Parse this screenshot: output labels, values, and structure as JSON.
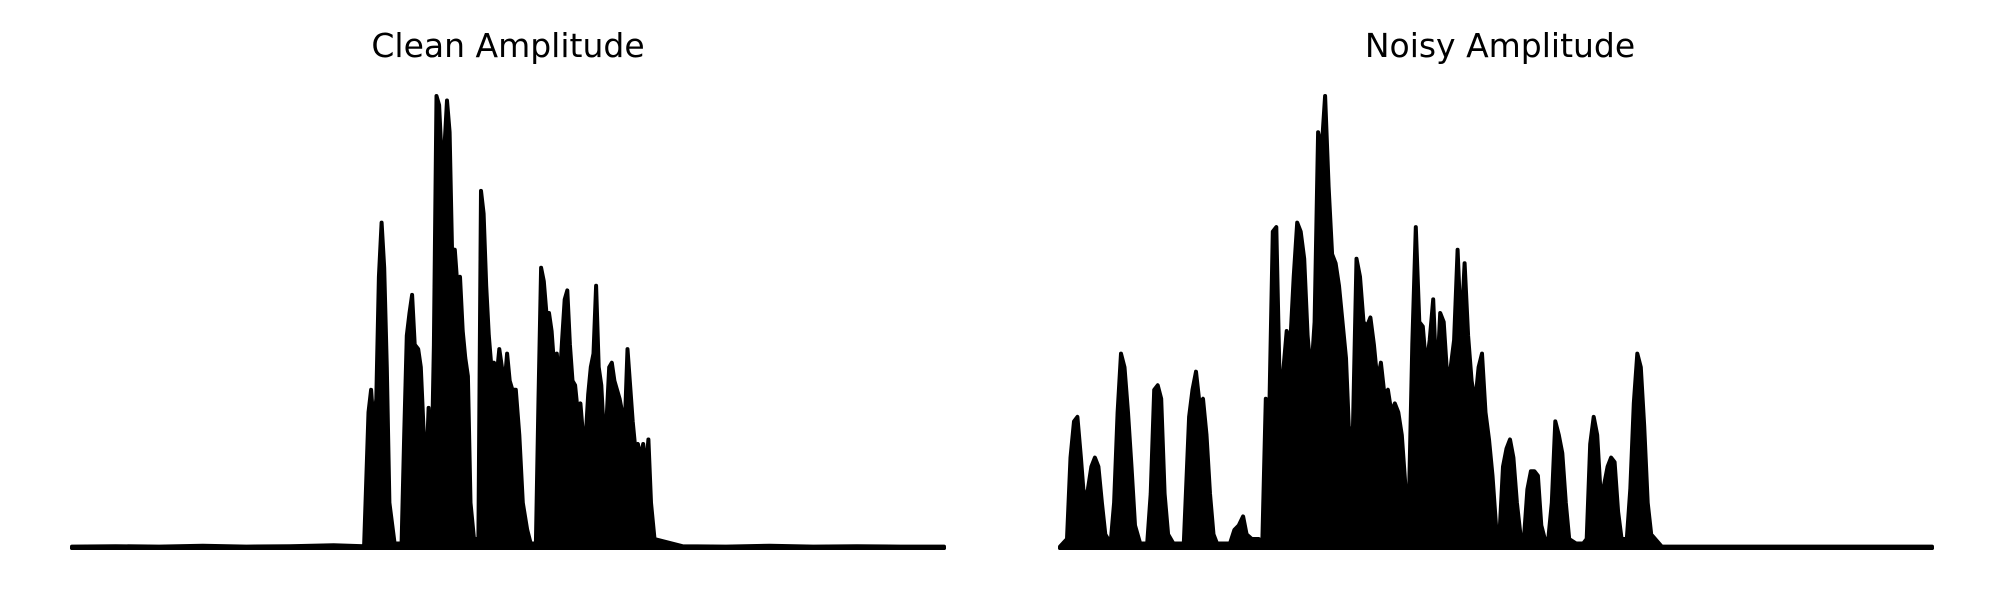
{
  "chart_data": [
    {
      "type": "area",
      "title": "Clean Amplitude",
      "xlabel": "",
      "ylabel": "",
      "axes": "off",
      "grid": false,
      "color": "#000000",
      "x_range": [
        0,
        1
      ],
      "ylim": [
        0,
        1
      ],
      "envelope": [
        [
          0.0,
          0.003
        ],
        [
          0.05,
          0.004
        ],
        [
          0.1,
          0.003
        ],
        [
          0.15,
          0.005
        ],
        [
          0.2,
          0.003
        ],
        [
          0.25,
          0.004
        ],
        [
          0.3,
          0.006
        ],
        [
          0.335,
          0.004
        ],
        [
          0.34,
          0.3
        ],
        [
          0.343,
          0.35
        ],
        [
          0.346,
          0.27
        ],
        [
          0.349,
          0.33
        ],
        [
          0.352,
          0.6
        ],
        [
          0.355,
          0.72
        ],
        [
          0.358,
          0.62
        ],
        [
          0.361,
          0.4
        ],
        [
          0.364,
          0.1
        ],
        [
          0.37,
          0.01
        ],
        [
          0.378,
          0.01
        ],
        [
          0.381,
          0.25
        ],
        [
          0.384,
          0.47
        ],
        [
          0.387,
          0.52
        ],
        [
          0.39,
          0.56
        ],
        [
          0.393,
          0.45
        ],
        [
          0.397,
          0.44
        ],
        [
          0.4,
          0.4
        ],
        [
          0.403,
          0.27
        ],
        [
          0.406,
          0.15
        ],
        [
          0.409,
          0.31
        ],
        [
          0.412,
          0.14
        ],
        [
          0.415,
          0.45
        ],
        [
          0.418,
          1.0
        ],
        [
          0.421,
          0.98
        ],
        [
          0.424,
          0.86
        ],
        [
          0.427,
          0.88
        ],
        [
          0.43,
          0.99
        ],
        [
          0.433,
          0.92
        ],
        [
          0.436,
          0.64
        ],
        [
          0.439,
          0.66
        ],
        [
          0.442,
          0.58
        ],
        [
          0.445,
          0.6
        ],
        [
          0.448,
          0.48
        ],
        [
          0.451,
          0.42
        ],
        [
          0.454,
          0.38
        ],
        [
          0.457,
          0.1
        ],
        [
          0.461,
          0.02
        ],
        [
          0.466,
          0.02
        ],
        [
          0.469,
          0.79
        ],
        [
          0.472,
          0.74
        ],
        [
          0.475,
          0.58
        ],
        [
          0.478,
          0.47
        ],
        [
          0.481,
          0.4
        ],
        [
          0.484,
          0.41
        ],
        [
          0.487,
          0.38
        ],
        [
          0.49,
          0.44
        ],
        [
          0.493,
          0.4
        ],
        [
          0.496,
          0.36
        ],
        [
          0.499,
          0.43
        ],
        [
          0.502,
          0.37
        ],
        [
          0.505,
          0.35
        ],
        [
          0.509,
          0.35
        ],
        [
          0.513,
          0.25
        ],
        [
          0.517,
          0.1
        ],
        [
          0.522,
          0.04
        ],
        [
          0.526,
          0.01
        ],
        [
          0.532,
          0.01
        ],
        [
          0.535,
          0.33
        ],
        [
          0.538,
          0.62
        ],
        [
          0.541,
          0.59
        ],
        [
          0.544,
          0.52
        ],
        [
          0.547,
          0.52
        ],
        [
          0.55,
          0.48
        ],
        [
          0.553,
          0.4
        ],
        [
          0.556,
          0.43
        ],
        [
          0.559,
          0.36
        ],
        [
          0.562,
          0.46
        ],
        [
          0.565,
          0.55
        ],
        [
          0.568,
          0.57
        ],
        [
          0.571,
          0.45
        ],
        [
          0.574,
          0.37
        ],
        [
          0.577,
          0.36
        ],
        [
          0.58,
          0.3
        ],
        [
          0.583,
          0.32
        ],
        [
          0.586,
          0.25
        ],
        [
          0.589,
          0.24
        ],
        [
          0.592,
          0.34
        ],
        [
          0.595,
          0.4
        ],
        [
          0.598,
          0.43
        ],
        [
          0.601,
          0.58
        ],
        [
          0.604,
          0.4
        ],
        [
          0.607,
          0.36
        ],
        [
          0.61,
          0.25
        ],
        [
          0.613,
          0.28
        ],
        [
          0.616,
          0.4
        ],
        [
          0.619,
          0.41
        ],
        [
          0.622,
          0.37
        ],
        [
          0.625,
          0.35
        ],
        [
          0.628,
          0.33
        ],
        [
          0.631,
          0.3
        ],
        [
          0.634,
          0.27
        ],
        [
          0.637,
          0.44
        ],
        [
          0.64,
          0.36
        ],
        [
          0.643,
          0.28
        ],
        [
          0.646,
          0.22
        ],
        [
          0.649,
          0.23
        ],
        [
          0.652,
          0.2
        ],
        [
          0.655,
          0.23
        ],
        [
          0.658,
          0.17
        ],
        [
          0.661,
          0.24
        ],
        [
          0.664,
          0.1
        ],
        [
          0.668,
          0.02
        ],
        [
          0.7,
          0.004
        ],
        [
          0.75,
          0.003
        ],
        [
          0.8,
          0.005
        ],
        [
          0.85,
          0.003
        ],
        [
          0.9,
          0.004
        ],
        [
          0.95,
          0.003
        ],
        [
          1.0,
          0.003
        ]
      ]
    },
    {
      "type": "area",
      "title": "Noisy Amplitude",
      "xlabel": "",
      "ylabel": "",
      "axes": "off",
      "grid": false,
      "color": "#000000",
      "x_range": [
        0,
        1
      ],
      "ylim": [
        0,
        1
      ],
      "envelope": [
        [
          0.0,
          0.003
        ],
        [
          0.008,
          0.02
        ],
        [
          0.012,
          0.2
        ],
        [
          0.016,
          0.28
        ],
        [
          0.02,
          0.29
        ],
        [
          0.024,
          0.2
        ],
        [
          0.028,
          0.1
        ],
        [
          0.032,
          0.13
        ],
        [
          0.036,
          0.18
        ],
        [
          0.04,
          0.2
        ],
        [
          0.044,
          0.18
        ],
        [
          0.048,
          0.1
        ],
        [
          0.052,
          0.03
        ],
        [
          0.058,
          0.01
        ],
        [
          0.062,
          0.1
        ],
        [
          0.066,
          0.3
        ],
        [
          0.07,
          0.43
        ],
        [
          0.074,
          0.4
        ],
        [
          0.078,
          0.3
        ],
        [
          0.082,
          0.18
        ],
        [
          0.086,
          0.05
        ],
        [
          0.092,
          0.01
        ],
        [
          0.1,
          0.01
        ],
        [
          0.104,
          0.12
        ],
        [
          0.108,
          0.35
        ],
        [
          0.112,
          0.36
        ],
        [
          0.116,
          0.33
        ],
        [
          0.12,
          0.12
        ],
        [
          0.124,
          0.03
        ],
        [
          0.13,
          0.01
        ],
        [
          0.138,
          0.01
        ],
        [
          0.142,
          0.01
        ],
        [
          0.148,
          0.29
        ],
        [
          0.152,
          0.35
        ],
        [
          0.156,
          0.39
        ],
        [
          0.16,
          0.32
        ],
        [
          0.164,
          0.33
        ],
        [
          0.168,
          0.25
        ],
        [
          0.172,
          0.12
        ],
        [
          0.176,
          0.03
        ],
        [
          0.18,
          0.01
        ],
        [
          0.195,
          0.01
        ],
        [
          0.2,
          0.04
        ],
        [
          0.205,
          0.05
        ],
        [
          0.21,
          0.07
        ],
        [
          0.214,
          0.03
        ],
        [
          0.22,
          0.02
        ],
        [
          0.228,
          0.02
        ],
        [
          0.232,
          0.01
        ],
        [
          0.236,
          0.33
        ],
        [
          0.24,
          0.3
        ],
        [
          0.244,
          0.7
        ],
        [
          0.248,
          0.71
        ],
        [
          0.252,
          0.36
        ],
        [
          0.256,
          0.39
        ],
        [
          0.26,
          0.48
        ],
        [
          0.264,
          0.45
        ],
        [
          0.268,
          0.6
        ],
        [
          0.272,
          0.72
        ],
        [
          0.276,
          0.7
        ],
        [
          0.28,
          0.64
        ],
        [
          0.284,
          0.47
        ],
        [
          0.288,
          0.38
        ],
        [
          0.292,
          0.5
        ],
        [
          0.296,
          0.92
        ],
        [
          0.3,
          0.88
        ],
        [
          0.304,
          1.0
        ],
        [
          0.308,
          0.8
        ],
        [
          0.312,
          0.65
        ],
        [
          0.316,
          0.63
        ],
        [
          0.32,
          0.58
        ],
        [
          0.324,
          0.5
        ],
        [
          0.328,
          0.42
        ],
        [
          0.332,
          0.23
        ],
        [
          0.336,
          0.27
        ],
        [
          0.34,
          0.64
        ],
        [
          0.344,
          0.6
        ],
        [
          0.348,
          0.5
        ],
        [
          0.352,
          0.49
        ],
        [
          0.356,
          0.51
        ],
        [
          0.36,
          0.45
        ],
        [
          0.364,
          0.37
        ],
        [
          0.368,
          0.41
        ],
        [
          0.372,
          0.34
        ],
        [
          0.376,
          0.35
        ],
        [
          0.38,
          0.3
        ],
        [
          0.384,
          0.32
        ],
        [
          0.388,
          0.3
        ],
        [
          0.392,
          0.25
        ],
        [
          0.396,
          0.14
        ],
        [
          0.4,
          0.09
        ],
        [
          0.404,
          0.45
        ],
        [
          0.408,
          0.71
        ],
        [
          0.412,
          0.5
        ],
        [
          0.416,
          0.49
        ],
        [
          0.42,
          0.4
        ],
        [
          0.424,
          0.46
        ],
        [
          0.428,
          0.55
        ],
        [
          0.432,
          0.36
        ],
        [
          0.436,
          0.52
        ],
        [
          0.44,
          0.5
        ],
        [
          0.444,
          0.38
        ],
        [
          0.448,
          0.4
        ],
        [
          0.452,
          0.46
        ],
        [
          0.456,
          0.66
        ],
        [
          0.46,
          0.47
        ],
        [
          0.464,
          0.63
        ],
        [
          0.468,
          0.47
        ],
        [
          0.472,
          0.37
        ],
        [
          0.476,
          0.32
        ],
        [
          0.48,
          0.4
        ],
        [
          0.484,
          0.43
        ],
        [
          0.488,
          0.3
        ],
        [
          0.492,
          0.24
        ],
        [
          0.496,
          0.16
        ],
        [
          0.5,
          0.05
        ],
        [
          0.504,
          0.03
        ],
        [
          0.508,
          0.18
        ],
        [
          0.512,
          0.22
        ],
        [
          0.516,
          0.24
        ],
        [
          0.52,
          0.2
        ],
        [
          0.524,
          0.1
        ],
        [
          0.528,
          0.03
        ],
        [
          0.532,
          0.02
        ],
        [
          0.536,
          0.13
        ],
        [
          0.54,
          0.17
        ],
        [
          0.544,
          0.17
        ],
        [
          0.548,
          0.16
        ],
        [
          0.552,
          0.05
        ],
        [
          0.556,
          0.02
        ],
        [
          0.56,
          0.02
        ],
        [
          0.564,
          0.1
        ],
        [
          0.568,
          0.28
        ],
        [
          0.572,
          0.25
        ],
        [
          0.576,
          0.21
        ],
        [
          0.58,
          0.1
        ],
        [
          0.584,
          0.02
        ],
        [
          0.592,
          0.01
        ],
        [
          0.6,
          0.01
        ],
        [
          0.604,
          0.02
        ],
        [
          0.608,
          0.23
        ],
        [
          0.612,
          0.29
        ],
        [
          0.616,
          0.25
        ],
        [
          0.62,
          0.12
        ],
        [
          0.624,
          0.14
        ],
        [
          0.628,
          0.18
        ],
        [
          0.632,
          0.2
        ],
        [
          0.636,
          0.19
        ],
        [
          0.64,
          0.08
        ],
        [
          0.644,
          0.02
        ],
        [
          0.65,
          0.02
        ],
        [
          0.654,
          0.13
        ],
        [
          0.658,
          0.32
        ],
        [
          0.662,
          0.43
        ],
        [
          0.666,
          0.4
        ],
        [
          0.67,
          0.27
        ],
        [
          0.674,
          0.1
        ],
        [
          0.678,
          0.03
        ],
        [
          0.69,
          0.003
        ],
        [
          1.0,
          0.003
        ]
      ]
    }
  ]
}
